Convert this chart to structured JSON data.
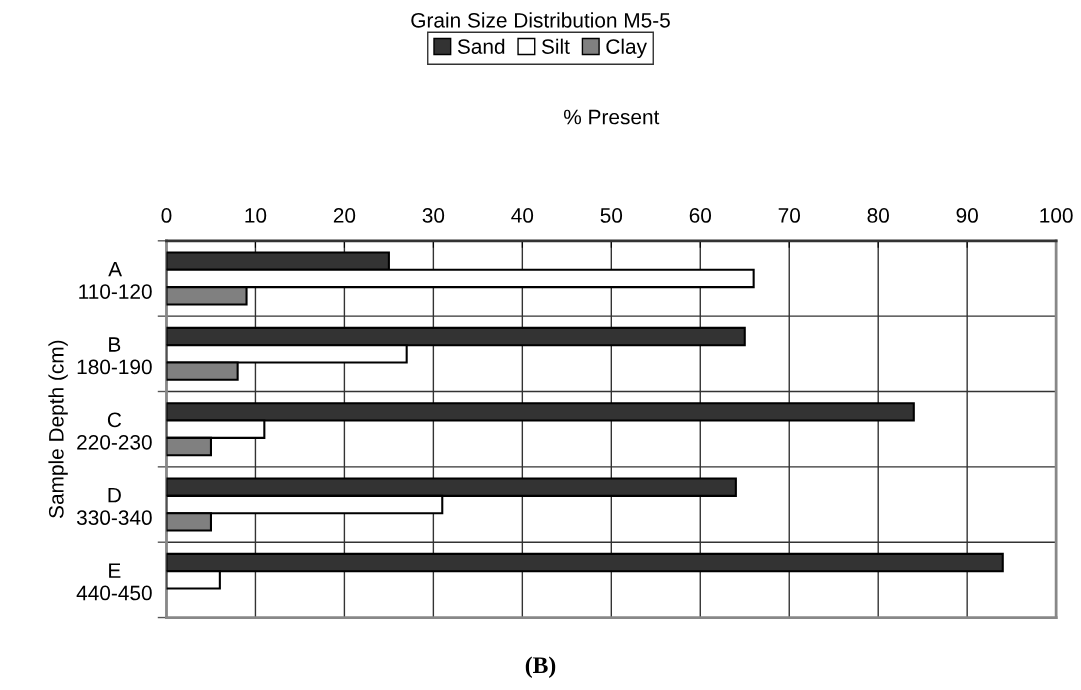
{
  "chart_data": {
    "type": "bar",
    "orientation": "horizontal",
    "title": "Grain Size Distribution M5-5",
    "xlabel": "% Present",
    "ylabel": "Sample Depth (cm)",
    "categories": [
      "A\n110-120",
      "B\n180-190",
      "C\n220-230",
      "D\n330-340",
      "E\n440-450"
    ],
    "series": [
      {
        "name": "Sand",
        "color": "#333333",
        "values": [
          25,
          65,
          84,
          64,
          94
        ]
      },
      {
        "name": "Silt",
        "color": "#ffffff",
        "values": [
          66,
          27,
          11,
          31,
          6
        ]
      },
      {
        "name": "Clay",
        "color": "#808080",
        "values": [
          9,
          8,
          5,
          5,
          null
        ]
      }
    ],
    "xlim": [
      0,
      100
    ],
    "xticks": [
      0,
      10,
      20,
      30,
      40,
      50,
      60,
      70,
      80,
      90,
      100
    ],
    "grid": true,
    "legend": "top",
    "annotations": [
      "(B)"
    ]
  }
}
